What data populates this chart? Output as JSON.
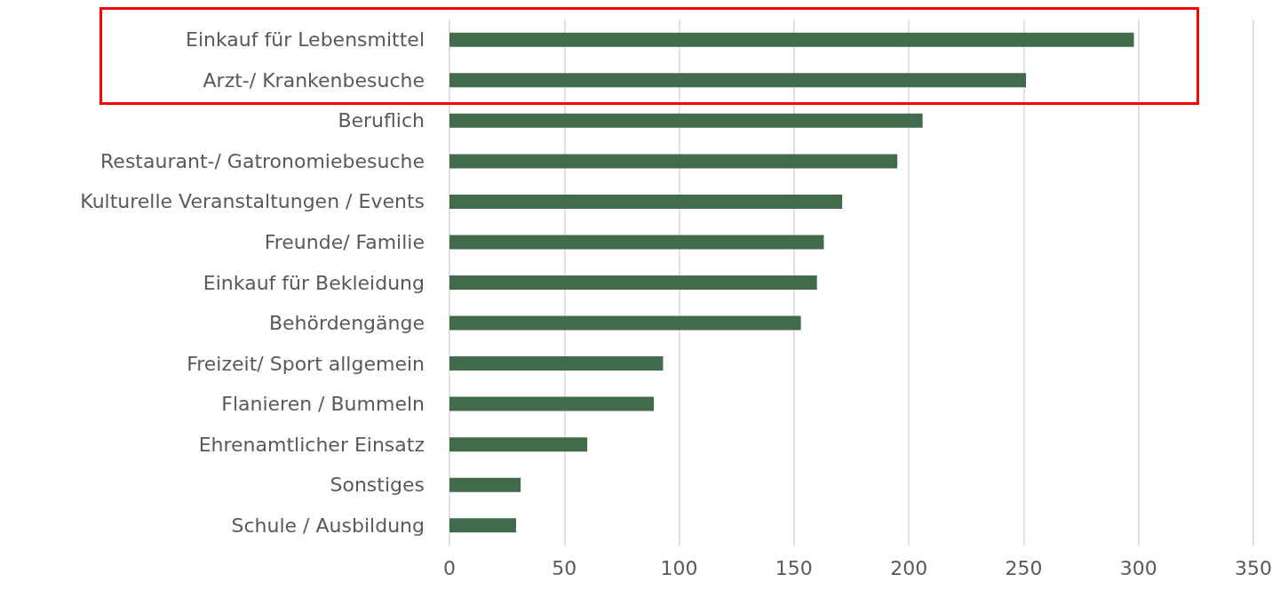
{
  "chart_data": {
    "type": "bar",
    "orientation": "horizontal",
    "categories": [
      "Einkauf für Lebensmittel",
      "Arzt-/ Krankenbesuche",
      "Beruflich",
      "Restaurant-/ Gatronomiebesuche",
      "Kulturelle Veranstaltungen / Events",
      "Freunde/ Familie",
      "Einkauf für Bekleidung",
      "Behördengänge",
      "Freizeit/ Sport allgemein",
      "Flanieren / Bummeln",
      "Ehrenamtlicher Einsatz",
      "Sonstiges",
      "Schule / Ausbildung"
    ],
    "values": [
      298,
      251,
      206,
      195,
      171,
      163,
      160,
      153,
      93,
      89,
      60,
      31,
      29
    ],
    "color": "#426b4c",
    "xlim": [
      0,
      350
    ],
    "xticks": [
      0,
      50,
      100,
      150,
      200,
      250,
      300,
      350
    ],
    "grid": "x"
  }
}
